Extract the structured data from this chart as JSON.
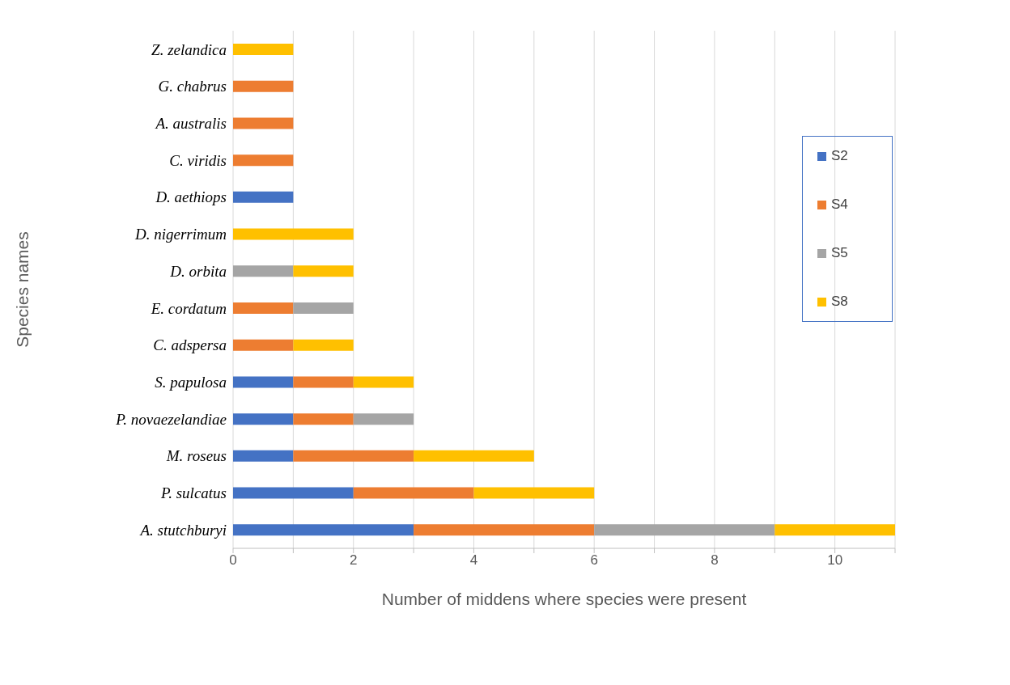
{
  "chart_data": {
    "type": "bar",
    "orientation": "horizontal",
    "stacked": true,
    "xlabel": "Number of middens where species were present",
    "ylabel": "Species names",
    "categories": [
      "Z. zelandica",
      "G. chabrus",
      "A. australis",
      "C. viridis",
      "D. aethiops",
      "D. nigerrimum",
      "D. orbita",
      "E. cordatum",
      "C. adspersa",
      "S. papulosa",
      "P. novaezelandiae",
      "M. roseus",
      "P. sulcatus",
      "A. stutchburyi"
    ],
    "series": [
      {
        "name": "S2",
        "color": "#4472c4",
        "values": [
          null,
          null,
          null,
          null,
          1,
          null,
          null,
          null,
          null,
          1,
          1,
          1,
          2,
          3
        ]
      },
      {
        "name": "S4",
        "color": "#ed7d31",
        "values": [
          null,
          1,
          1,
          1,
          null,
          null,
          null,
          1,
          1,
          1,
          1,
          2,
          2,
          3
        ]
      },
      {
        "name": "S5",
        "color": "#a5a5a5",
        "values": [
          null,
          null,
          null,
          null,
          null,
          null,
          1,
          1,
          null,
          null,
          1,
          null,
          null,
          3
        ]
      },
      {
        "name": "S8",
        "color": "#ffc000",
        "values": [
          1,
          null,
          null,
          null,
          null,
          2,
          1,
          null,
          1,
          1,
          null,
          2,
          2,
          2
        ]
      }
    ],
    "xlim": [
      0,
      11
    ],
    "xticks": [
      0,
      {
        "value": 1,
        "label": null
      },
      2,
      {
        "value": 3,
        "label": null
      },
      4,
      {
        "value": 5,
        "label": null
      },
      6,
      {
        "value": 7,
        "label": null
      },
      8,
      {
        "value": 9,
        "label": null
      },
      10,
      {
        "value": 11,
        "label": null
      }
    ],
    "grid": "x",
    "legend": "right"
  }
}
